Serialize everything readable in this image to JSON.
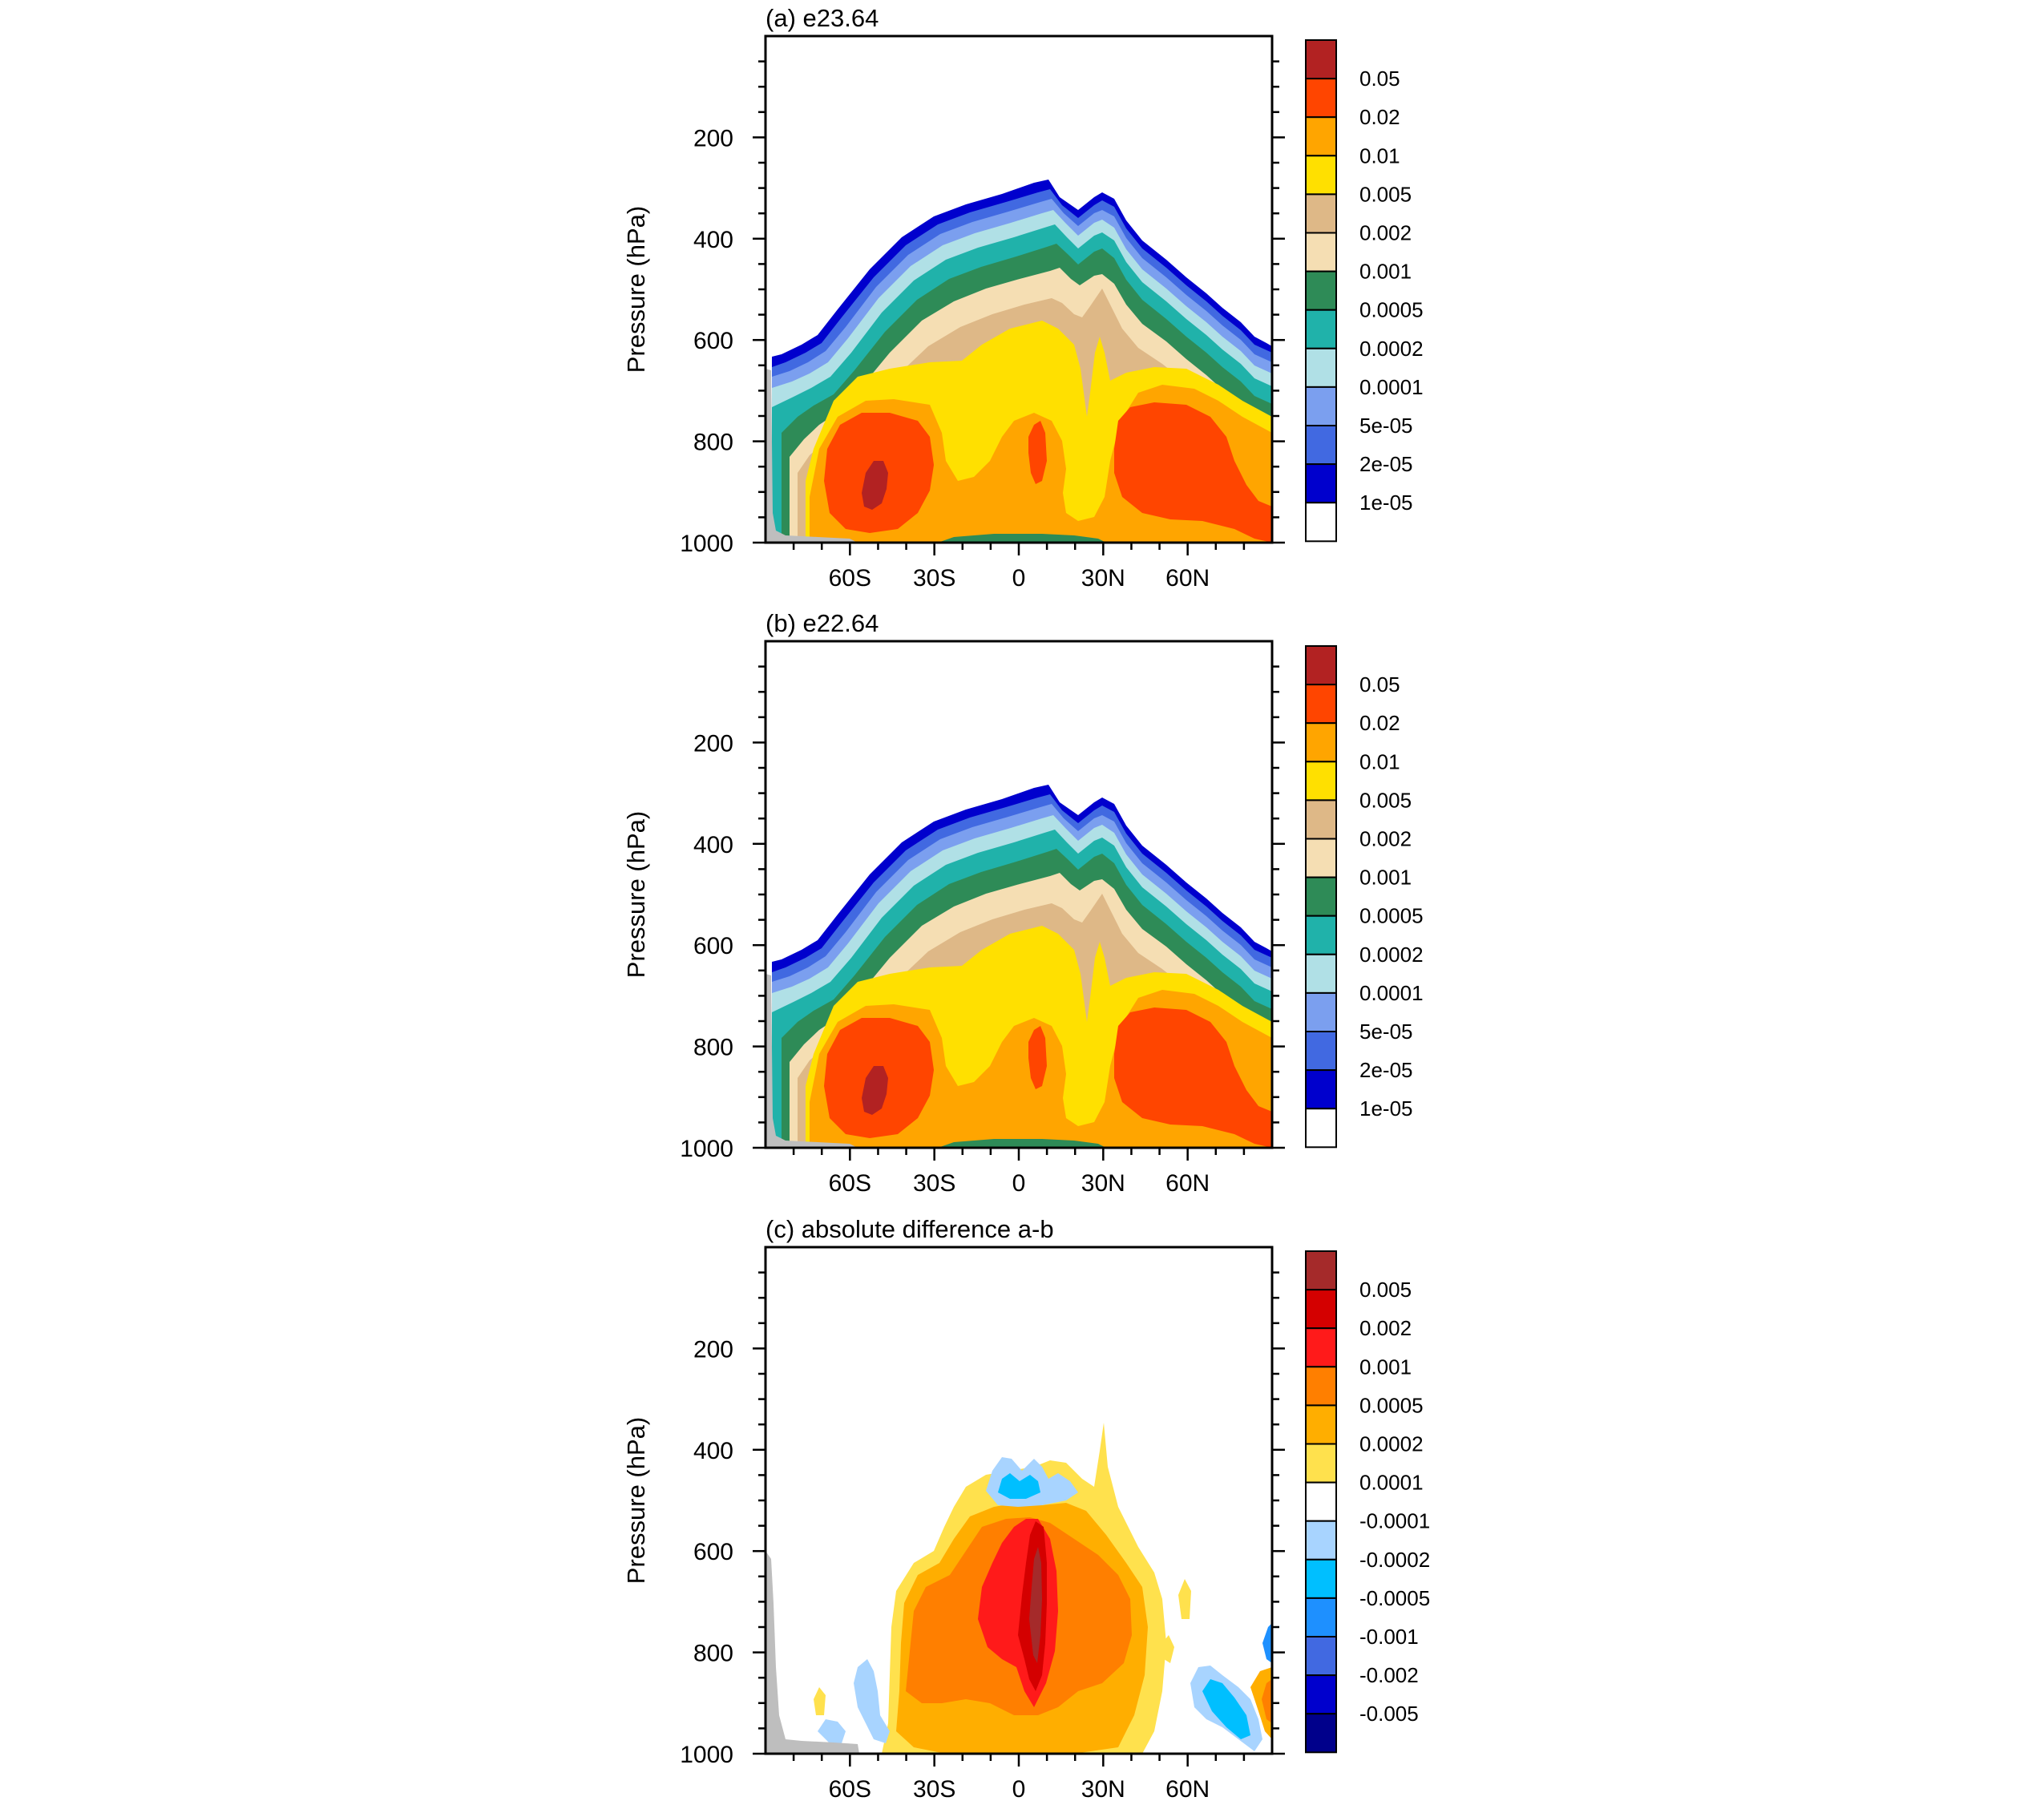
{
  "chart_data": [
    {
      "type": "contour",
      "panel": "a",
      "title": "(a) e23.64",
      "xlabel": "",
      "ylabel": "Pressure (hPa)",
      "ylim": [
        0,
        1000
      ],
      "yticks": [
        "200",
        "400",
        "600",
        "800",
        "1000"
      ],
      "ytick_values": [
        200,
        400,
        600,
        800,
        1000
      ],
      "xticks": [
        "60S",
        "30S",
        "0",
        "30N",
        "60N"
      ],
      "xtick_values": [
        -60,
        -30,
        0,
        30,
        60
      ],
      "xlim": [
        -90,
        90
      ],
      "colorbar": {
        "labels": [
          "0.05",
          "0.02",
          "0.01",
          "0.005",
          "0.002",
          "0.001",
          "0.0005",
          "0.0002",
          "0.0001",
          "5e-05",
          "2e-05",
          "1e-05"
        ],
        "colors": [
          "#b22222",
          "#ff4500",
          "#ffa500",
          "#ffe000",
          "#deb887",
          "#f5deb3",
          "#2e8b57",
          "#20b2aa",
          "#b0e0e6",
          "#7b9fef",
          "#4169e1",
          "#0000cd",
          "#ffffff"
        ]
      }
    },
    {
      "type": "contour",
      "panel": "b",
      "title": "(b) e22.64",
      "xlabel": "",
      "ylabel": "Pressure (hPa)",
      "ylim": [
        0,
        1000
      ],
      "yticks": [
        "200",
        "400",
        "600",
        "800",
        "1000"
      ],
      "ytick_values": [
        200,
        400,
        600,
        800,
        1000
      ],
      "xticks": [
        "60S",
        "30S",
        "0",
        "30N",
        "60N"
      ],
      "xtick_values": [
        -60,
        -30,
        0,
        30,
        60
      ],
      "xlim": [
        -90,
        90
      ],
      "colorbar": {
        "labels": [
          "0.05",
          "0.02",
          "0.01",
          "0.005",
          "0.002",
          "0.001",
          "0.0005",
          "0.0002",
          "0.0001",
          "5e-05",
          "2e-05",
          "1e-05"
        ],
        "colors": [
          "#b22222",
          "#ff4500",
          "#ffa500",
          "#ffe000",
          "#deb887",
          "#f5deb3",
          "#2e8b57",
          "#20b2aa",
          "#b0e0e6",
          "#7b9fef",
          "#4169e1",
          "#0000cd",
          "#ffffff"
        ]
      }
    },
    {
      "type": "contour",
      "panel": "c",
      "title": "(c) absolute difference a-b",
      "xlabel": "",
      "ylabel": "Pressure (hPa)",
      "ylim": [
        0,
        1000
      ],
      "yticks": [
        "200",
        "400",
        "600",
        "800",
        "1000"
      ],
      "ytick_values": [
        200,
        400,
        600,
        800,
        1000
      ],
      "xticks": [
        "60S",
        "30S",
        "0",
        "30N",
        "60N"
      ],
      "xtick_values": [
        -60,
        -30,
        0,
        30,
        60
      ],
      "xlim": [
        -90,
        90
      ],
      "colorbar": {
        "labels": [
          "0.005",
          "0.002",
          "0.001",
          "0.0005",
          "0.0002",
          "0.0001",
          "-0.0001",
          "-0.0002",
          "-0.0005",
          "-0.001",
          "-0.002",
          "-0.005"
        ],
        "colors": [
          "#a52a2a",
          "#d40000",
          "#ff1a1a",
          "#ff7f00",
          "#ffae00",
          "#ffe14d",
          "#ffffff",
          "#a8d4ff",
          "#00bfff",
          "#1e90ff",
          "#4169e1",
          "#0000cd",
          "#00008b"
        ]
      }
    }
  ]
}
